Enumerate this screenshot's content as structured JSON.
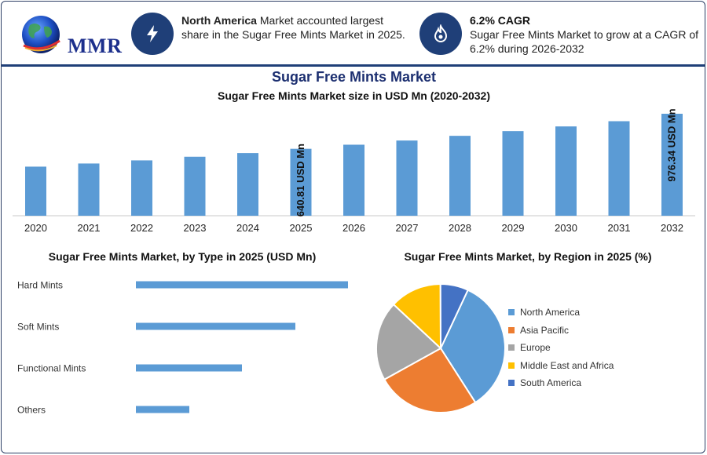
{
  "header": {
    "logo_text": "MMR",
    "card1": {
      "highlight": "North America",
      "text": " Market accounted largest share in the Sugar Free Mints Market in 2025.",
      "icon": "lightning-icon"
    },
    "card2": {
      "title": "6.2% CAGR",
      "text": "Sugar Free Mints Market to grow at a CAGR of 6.2% during 2026-2032",
      "icon": "flame-icon"
    }
  },
  "colors": {
    "bar": "#5b9bd5",
    "navy": "#1f3f78"
  },
  "chart_data": [
    {
      "type": "bar",
      "title": "Sugar Free Mints Market",
      "subtitle": "Sugar Free Mints Market size in USD Mn (2020-2032)",
      "categories": [
        "2020",
        "2021",
        "2022",
        "2023",
        "2024",
        "2025",
        "2026",
        "2027",
        "2028",
        "2029",
        "2030",
        "2031",
        "2032"
      ],
      "values": [
        470,
        500,
        530,
        565,
        600,
        640.81,
        680,
        720,
        765,
        810,
        855,
        905,
        976.34
      ],
      "data_labels": [
        {
          "category": "2025",
          "text": "640.81 USD Mn"
        },
        {
          "category": "2032",
          "text": "976.34 USD Mn"
        }
      ],
      "ylim": [
        0,
        976.34
      ]
    },
    {
      "type": "bar",
      "orientation": "horizontal",
      "title": "Sugar Free Mints Market, by Type in 2025 (USD Mn)",
      "categories": [
        "Hard Mints",
        "Soft Mints",
        "Functional Mints",
        "Others"
      ],
      "values": [
        270,
        203,
        135,
        68
      ],
      "xlim": [
        0,
        270
      ]
    },
    {
      "type": "pie",
      "title": "Sugar Free Mints Market, by Region in 2025 (%)",
      "labels": [
        "North America",
        "Asia Pacific",
        "Europe",
        "Middle East and Africa",
        "South America"
      ],
      "values": [
        34,
        26,
        20,
        13,
        7
      ],
      "colors": [
        "#5b9bd5",
        "#ed7d31",
        "#a5a5a5",
        "#ffc000",
        "#4472c4"
      ]
    }
  ]
}
